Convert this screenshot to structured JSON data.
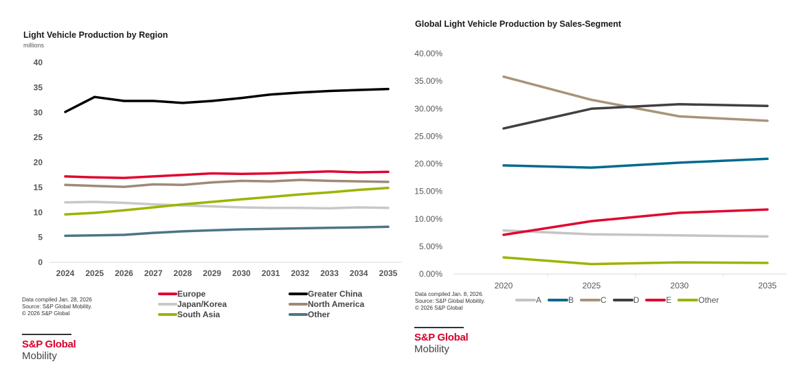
{
  "chart_data": [
    {
      "type": "line",
      "title": "Light Vehicle Production by Region",
      "ylabel": "millions",
      "xlabel": "",
      "x": [
        "2024",
        "2025",
        "2026",
        "2027",
        "2028",
        "2029",
        "2030",
        "2031",
        "2032",
        "2033",
        "2034",
        "2035"
      ],
      "ylim": [
        0,
        40
      ],
      "yticks": [
        "0",
        "5",
        "10",
        "15",
        "20",
        "25",
        "30",
        "35",
        "40"
      ],
      "grid": false,
      "legend_placement": "bottom",
      "series": [
        {
          "name": "Europe",
          "color": "#e0062f",
          "values": [
            17.2,
            17.0,
            16.9,
            17.2,
            17.5,
            17.8,
            17.7,
            17.8,
            18.0,
            18.2,
            18.0,
            18.1
          ]
        },
        {
          "name": "Greater China",
          "color": "#000000",
          "values": [
            30.1,
            33.1,
            32.3,
            32.3,
            31.9,
            32.3,
            32.9,
            33.6,
            34.0,
            34.3,
            34.5,
            34.7
          ]
        },
        {
          "name": "Japan/Korea",
          "color": "#c8c8c8",
          "values": [
            12.0,
            12.1,
            11.9,
            11.6,
            11.4,
            11.2,
            11.0,
            10.9,
            10.9,
            10.8,
            11.0,
            10.9
          ]
        },
        {
          "name": "North America",
          "color": "#9e8a76",
          "values": [
            15.5,
            15.3,
            15.1,
            15.6,
            15.5,
            16.0,
            16.3,
            16.2,
            16.5,
            16.3,
            16.2,
            16.1
          ]
        },
        {
          "name": "South Asia",
          "color": "#9db300",
          "values": [
            9.6,
            9.9,
            10.4,
            11.0,
            11.6,
            12.1,
            12.6,
            13.1,
            13.6,
            14.0,
            14.5,
            14.9
          ]
        },
        {
          "name": "Other",
          "color": "#4c7586",
          "values": [
            5.3,
            5.4,
            5.5,
            5.9,
            6.2,
            6.4,
            6.6,
            6.7,
            6.8,
            6.9,
            7.0,
            7.1
          ]
        }
      ],
      "source_lines": [
        "Data compiled Jan. 28, 2026",
        "Source: S&P Global Mobility.",
        "© 2026 S&P Global"
      ]
    },
    {
      "type": "line",
      "title": "Global Light Vehicle Production by Sales-Segment",
      "xlabel": "",
      "ylabel": "",
      "x": [
        "2020",
        "2025",
        "2030",
        "2035"
      ],
      "ylim": [
        0,
        40
      ],
      "yticks": [
        "0.00%",
        "5.00%",
        "10.00%",
        "15.00%",
        "20.00%",
        "25.00%",
        "30.00%",
        "35.00%",
        "40.00%"
      ],
      "grid": false,
      "legend_placement": "bottom",
      "series": [
        {
          "name": "A",
          "color": "#c4c4c4",
          "values": [
            7.9,
            7.2,
            7.0,
            6.8
          ]
        },
        {
          "name": "B",
          "color": "#006a8e",
          "values": [
            19.7,
            19.3,
            20.2,
            20.9
          ]
        },
        {
          "name": "C",
          "color": "#a89479",
          "values": [
            35.8,
            31.6,
            28.6,
            27.8
          ]
        },
        {
          "name": "D",
          "color": "#404040",
          "values": [
            26.4,
            30.0,
            30.8,
            30.5
          ]
        },
        {
          "name": "E",
          "color": "#e0062f",
          "values": [
            7.1,
            9.6,
            11.1,
            11.7
          ]
        },
        {
          "name": "Other",
          "color": "#9db300",
          "values": [
            3.0,
            1.8,
            2.1,
            2.0
          ]
        }
      ],
      "source_lines": [
        "Data compiled Jan. 8, 2026.",
        "Source: S&P Global Mobility.",
        "© 2026 S&P Global"
      ]
    }
  ],
  "brand": {
    "name": "S&P Global",
    "sub": "Mobility"
  }
}
